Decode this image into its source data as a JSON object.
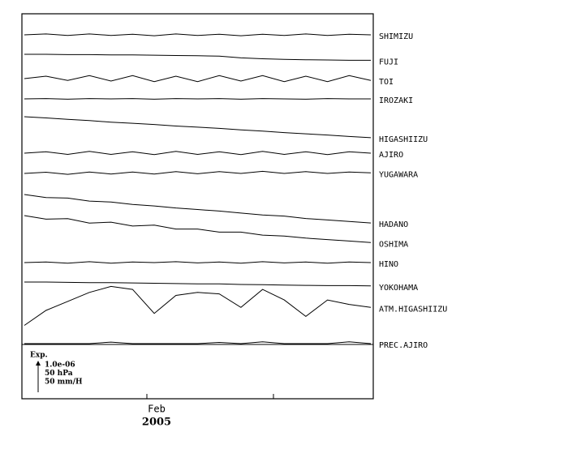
{
  "chart_data": {
    "type": "line",
    "series": [
      {
        "name": "SHIMIZU",
        "values": [
          0,
          0.03,
          -0.02,
          0.03,
          -0.02,
          0.02,
          -0.03,
          0.03,
          -0.02,
          0.02,
          -0.03,
          0.02,
          -0.02,
          0.03,
          -0.02,
          0.02,
          0
        ]
      },
      {
        "name": "FUJI",
        "values": [
          0,
          0,
          -0.01,
          -0.01,
          -0.02,
          -0.02,
          -0.03,
          -0.04,
          -0.05,
          -0.06,
          -0.12,
          -0.15,
          -0.17,
          -0.18,
          -0.19,
          -0.2,
          -0.2
        ]
      },
      {
        "name": "TOI",
        "values": [
          0,
          0.08,
          -0.06,
          0.1,
          -0.08,
          0.1,
          -0.1,
          0.08,
          -0.1,
          0.1,
          -0.08,
          0.1,
          -0.1,
          0.08,
          -0.1,
          0.1,
          -0.06
        ]
      },
      {
        "name": "IROZAKI",
        "values": [
          0,
          0.01,
          -0.01,
          0.01,
          0,
          0.01,
          -0.01,
          0.01,
          0,
          0.01,
          -0.01,
          0.01,
          0,
          -0.01,
          0.01,
          0,
          0
        ]
      },
      {
        "name": "HIGASHIIZU",
        "values": [
          0,
          -0.04,
          -0.09,
          -0.13,
          -0.18,
          -0.22,
          -0.26,
          -0.31,
          -0.35,
          -0.39,
          -0.44,
          -0.48,
          -0.53,
          -0.57,
          -0.61,
          -0.66,
          -0.7
        ]
      },
      {
        "name": "AJIRO",
        "values": [
          0,
          0.05,
          -0.04,
          0.06,
          -0.04,
          0.05,
          -0.05,
          0.06,
          -0.04,
          0.05,
          -0.05,
          0.06,
          -0.04,
          0.05,
          -0.05,
          0.05,
          0
        ]
      },
      {
        "name": "YUGAWARA",
        "values": [
          0,
          0.04,
          -0.03,
          0.05,
          -0.02,
          0.05,
          -0.02,
          0.06,
          -0.01,
          0.06,
          0,
          0.07,
          0,
          0.06,
          0,
          0.05,
          0.02
        ]
      },
      {
        "name": "HADANO",
        "values": [
          0,
          -0.1,
          -0.12,
          -0.22,
          -0.25,
          -0.33,
          -0.38,
          -0.45,
          -0.5,
          -0.55,
          -0.62,
          -0.68,
          -0.72,
          -0.8,
          -0.85,
          -0.9,
          -0.95
        ]
      },
      {
        "name": "OSHIMA",
        "values": [
          0,
          -0.12,
          -0.1,
          -0.25,
          -0.22,
          -0.35,
          -0.32,
          -0.45,
          -0.45,
          -0.55,
          -0.55,
          -0.65,
          -0.68,
          -0.75,
          -0.8,
          -0.85,
          -0.9
        ]
      },
      {
        "name": "HINO",
        "values": [
          0,
          0.02,
          -0.02,
          0.03,
          -0.02,
          0.02,
          0,
          0.03,
          -0.01,
          0.02,
          -0.02,
          0.03,
          -0.01,
          0.02,
          -0.02,
          0.02,
          0
        ]
      },
      {
        "name": "YOKOHAMA",
        "values": [
          0,
          0,
          -0.01,
          -0.02,
          -0.02,
          -0.03,
          -0.04,
          -0.05,
          -0.06,
          -0.06,
          -0.08,
          -0.09,
          -0.1,
          -0.11,
          -0.12,
          -0.12,
          -0.13
        ]
      },
      {
        "name": "ATM.HIGASHIIZU",
        "values": [
          -0.5,
          0,
          0.3,
          0.6,
          0.8,
          0.7,
          -0.1,
          0.5,
          0.6,
          0.55,
          0.1,
          0.7,
          0.35,
          -0.2,
          0.35,
          0.2,
          0.1
        ]
      },
      {
        "name": "PREC.AJIRO",
        "values": [
          0,
          0,
          0,
          0,
          0.05,
          0,
          0,
          0,
          0,
          0.04,
          0,
          0.06,
          0,
          0,
          0,
          0.06,
          0
        ]
      }
    ],
    "xticks": [
      "Feb",
      null
    ],
    "year": "2005",
    "scale_title": "Exp.",
    "scale_labels": [
      "1.0e-06",
      "50 hPa",
      "50 mm/H"
    ]
  }
}
